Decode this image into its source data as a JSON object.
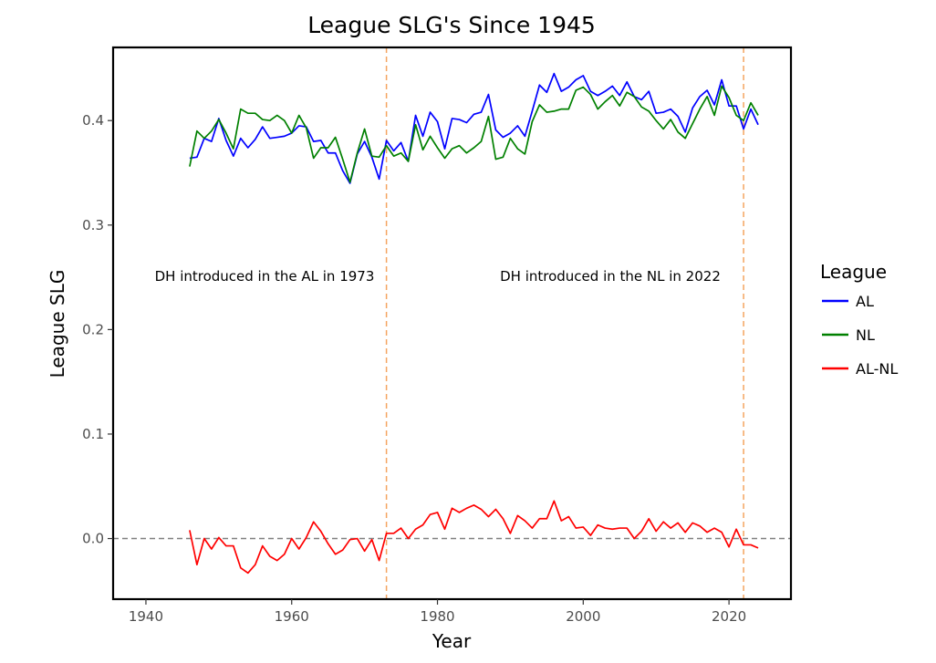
{
  "chart_data": {
    "type": "line",
    "title": "League SLG's Since 1945",
    "xlabel": "Year",
    "ylabel": "League SLG",
    "xlim": [
      1935.5,
      2028.5
    ],
    "ylim": [
      -0.058,
      0.47
    ],
    "xticks": [
      1940,
      1960,
      1980,
      2000,
      2020
    ],
    "yticks": [
      0.0,
      0.1,
      0.2,
      0.3,
      0.4
    ],
    "x_tick_labels": [
      "1940",
      "1960",
      "1980",
      "2000",
      "2020"
    ],
    "y_tick_labels": [
      "0.0",
      "0.1",
      "0.2",
      "0.3",
      "0.4"
    ],
    "grid": false,
    "legend": {
      "title": "League",
      "placement": "right"
    },
    "reference_lines": [
      {
        "orientation": "horizontal",
        "value": 0.0,
        "style": "dashed",
        "color": "#808080"
      },
      {
        "orientation": "vertical",
        "value": 1973,
        "style": "dashed",
        "color": "#f4a460"
      },
      {
        "orientation": "vertical",
        "value": 2022,
        "style": "dashed",
        "color": "#f4a460"
      }
    ],
    "annotations": [
      {
        "text": "DH introduced in the AL in 1973",
        "x": 1969,
        "y": 0.25
      },
      {
        "text": "DH introduced in the NL in 2022",
        "x": 2004,
        "y": 0.25
      }
    ],
    "x": [
      1946,
      1947,
      1948,
      1949,
      1950,
      1951,
      1952,
      1953,
      1954,
      1955,
      1956,
      1957,
      1958,
      1959,
      1960,
      1961,
      1962,
      1963,
      1964,
      1965,
      1966,
      1967,
      1968,
      1969,
      1970,
      1971,
      1972,
      1973,
      1974,
      1975,
      1976,
      1977,
      1978,
      1979,
      1980,
      1981,
      1982,
      1983,
      1984,
      1985,
      1986,
      1987,
      1988,
      1989,
      1990,
      1991,
      1992,
      1993,
      1994,
      1995,
      1996,
      1997,
      1998,
      1999,
      2000,
      2001,
      2002,
      2003,
      2004,
      2005,
      2006,
      2007,
      2008,
      2009,
      2010,
      2011,
      2012,
      2013,
      2014,
      2015,
      2016,
      2017,
      2018,
      2019,
      2020,
      2021,
      2022,
      2023,
      2024
    ],
    "series": [
      {
        "name": "AL",
        "color": "#0000ff",
        "values": [
          0.364,
          0.365,
          0.383,
          0.38,
          0.402,
          0.381,
          0.366,
          0.383,
          0.374,
          0.382,
          0.394,
          0.383,
          0.384,
          0.385,
          0.388,
          0.395,
          0.394,
          0.38,
          0.381,
          0.369,
          0.369,
          0.352,
          0.34,
          0.368,
          0.38,
          0.365,
          0.344,
          0.381,
          0.371,
          0.379,
          0.361,
          0.405,
          0.385,
          0.408,
          0.399,
          0.373,
          0.402,
          0.401,
          0.398,
          0.406,
          0.408,
          0.425,
          0.391,
          0.384,
          0.388,
          0.395,
          0.385,
          0.409,
          0.434,
          0.427,
          0.445,
          0.428,
          0.432,
          0.439,
          0.443,
          0.428,
          0.424,
          0.428,
          0.433,
          0.424,
          0.437,
          0.423,
          0.42,
          0.428,
          0.407,
          0.408,
          0.411,
          0.404,
          0.389,
          0.412,
          0.423,
          0.429,
          0.415,
          0.439,
          0.414,
          0.414,
          0.392,
          0.411,
          0.396
        ]
      },
      {
        "name": "NL",
        "color": "#008000",
        "values": [
          0.356,
          0.39,
          0.383,
          0.39,
          0.401,
          0.388,
          0.373,
          0.411,
          0.407,
          0.407,
          0.401,
          0.4,
          0.405,
          0.4,
          0.388,
          0.405,
          0.393,
          0.364,
          0.374,
          0.374,
          0.384,
          0.363,
          0.341,
          0.369,
          0.392,
          0.366,
          0.365,
          0.376,
          0.366,
          0.369,
          0.361,
          0.396,
          0.372,
          0.385,
          0.374,
          0.364,
          0.373,
          0.376,
          0.369,
          0.374,
          0.38,
          0.404,
          0.363,
          0.365,
          0.383,
          0.373,
          0.368,
          0.399,
          0.415,
          0.408,
          0.409,
          0.411,
          0.411,
          0.429,
          0.432,
          0.425,
          0.411,
          0.418,
          0.424,
          0.414,
          0.427,
          0.423,
          0.413,
          0.409,
          0.4,
          0.392,
          0.401,
          0.389,
          0.383,
          0.397,
          0.411,
          0.423,
          0.405,
          0.433,
          0.422,
          0.405,
          0.4,
          0.417,
          0.405
        ]
      },
      {
        "name": "AL-NL",
        "color": "#ff0000",
        "values": [
          0.008,
          -0.025,
          0.0,
          -0.01,
          0.001,
          -0.007,
          -0.007,
          -0.028,
          -0.033,
          -0.025,
          -0.007,
          -0.017,
          -0.021,
          -0.015,
          0.0,
          -0.01,
          0.001,
          0.016,
          0.007,
          -0.005,
          -0.015,
          -0.011,
          -0.001,
          0.0,
          -0.012,
          -0.001,
          -0.021,
          0.005,
          0.005,
          0.01,
          0.0,
          0.009,
          0.013,
          0.023,
          0.025,
          0.009,
          0.029,
          0.025,
          0.029,
          0.032,
          0.028,
          0.021,
          0.028,
          0.019,
          0.005,
          0.022,
          0.017,
          0.01,
          0.019,
          0.019,
          0.036,
          0.017,
          0.021,
          0.01,
          0.011,
          0.003,
          0.013,
          0.01,
          0.009,
          0.01,
          0.01,
          0.0,
          0.007,
          0.019,
          0.007,
          0.016,
          0.01,
          0.015,
          0.006,
          0.015,
          0.012,
          0.006,
          0.01,
          0.006,
          -0.008,
          0.009,
          -0.006,
          -0.006,
          -0.009
        ]
      }
    ]
  }
}
